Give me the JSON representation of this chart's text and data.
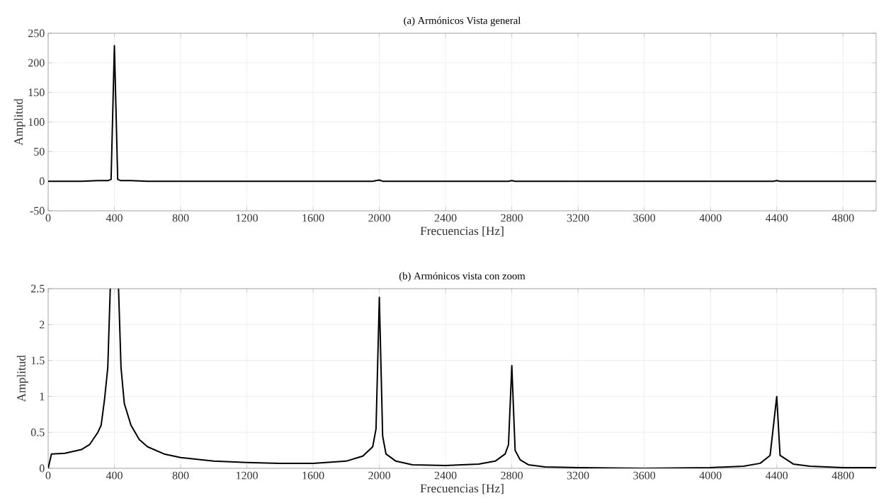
{
  "chart_data": [
    {
      "type": "line",
      "title": "(a) Armónicos Vista general",
      "xlabel": "Frecuencias [Hz]",
      "ylabel": "Amplitud",
      "xlim": [
        0,
        5000
      ],
      "ylim": [
        -50,
        250
      ],
      "xticks": [
        0,
        400,
        800,
        1200,
        1600,
        2000,
        2400,
        2800,
        3200,
        3600,
        4000,
        4400,
        4800
      ],
      "yticks": [
        -50,
        0,
        50,
        100,
        150,
        200,
        250
      ],
      "grid": true,
      "x": [
        0,
        20,
        100,
        200,
        300,
        360,
        380,
        400,
        420,
        440,
        500,
        600,
        800,
        1000,
        1200,
        1400,
        1600,
        1800,
        1960,
        1980,
        2000,
        2020,
        2040,
        2200,
        2400,
        2700,
        2780,
        2800,
        2820,
        2900,
        3200,
        3600,
        4000,
        4300,
        4380,
        4400,
        4420,
        4500,
        4800,
        5000
      ],
      "series": [
        {
          "color": "#000000",
          "values": [
            0,
            0,
            0,
            0,
            1,
            1,
            3,
            229,
            3,
            1,
            1,
            0,
            0,
            0,
            0,
            0,
            0,
            0,
            0,
            1,
            2,
            0,
            0,
            0,
            0,
            0,
            0,
            1,
            0,
            0,
            0,
            0,
            0,
            0,
            0,
            1,
            0,
            0,
            0,
            0
          ]
        }
      ]
    },
    {
      "type": "line",
      "title": "(b) Armónicos vista con zoom",
      "xlabel": "Frecuencias [Hz]",
      "ylabel": "Amplitud",
      "xlim": [
        0,
        5000
      ],
      "ylim": [
        0,
        2.5
      ],
      "xticks": [
        0,
        400,
        800,
        1200,
        1600,
        2000,
        2400,
        2800,
        3200,
        3600,
        4000,
        4400,
        4800
      ],
      "yticks": [
        0,
        0.5,
        1,
        1.5,
        2,
        2.5
      ],
      "grid": true,
      "x": [
        0,
        20,
        100,
        200,
        250,
        300,
        320,
        340,
        360,
        375,
        400,
        425,
        440,
        460,
        500,
        550,
        600,
        700,
        800,
        1000,
        1200,
        1400,
        1600,
        1800,
        1900,
        1960,
        1980,
        2000,
        2020,
        2040,
        2100,
        2200,
        2400,
        2600,
        2700,
        2760,
        2780,
        2800,
        2820,
        2850,
        2900,
        3000,
        3200,
        3600,
        4000,
        4200,
        4300,
        4360,
        4400,
        4420,
        4500,
        4600,
        4800,
        5000
      ],
      "series": [
        {
          "color": "#000000",
          "values": [
            0,
            0.2,
            0.21,
            0.26,
            0.33,
            0.5,
            0.6,
            0.95,
            1.4,
            2.5,
            null,
            2.5,
            1.4,
            0.9,
            0.6,
            0.4,
            0.3,
            0.2,
            0.15,
            0.1,
            0.08,
            0.07,
            0.07,
            0.1,
            0.17,
            0.3,
            0.55,
            2.38,
            0.45,
            0.2,
            0.1,
            0.05,
            0.04,
            0.06,
            0.1,
            0.2,
            0.33,
            1.43,
            0.25,
            0.12,
            0.05,
            0.02,
            0.01,
            0,
            0.01,
            0.03,
            0.07,
            0.18,
            1,
            0.18,
            0.06,
            0.03,
            0.01,
            0.01
          ]
        }
      ]
    }
  ]
}
